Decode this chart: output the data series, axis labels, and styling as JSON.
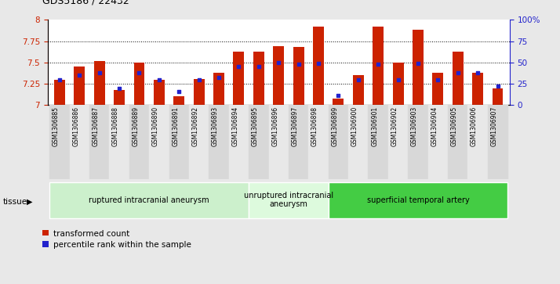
{
  "title": "GDS5186 / 22432",
  "samples": [
    "GSM1306885",
    "GSM1306886",
    "GSM1306887",
    "GSM1306888",
    "GSM1306889",
    "GSM1306890",
    "GSM1306891",
    "GSM1306892",
    "GSM1306893",
    "GSM1306894",
    "GSM1306895",
    "GSM1306896",
    "GSM1306897",
    "GSM1306898",
    "GSM1306899",
    "GSM1306900",
    "GSM1306901",
    "GSM1306902",
    "GSM1306903",
    "GSM1306904",
    "GSM1306905",
    "GSM1306906",
    "GSM1306907"
  ],
  "transformed_count": [
    7.3,
    7.45,
    7.52,
    7.18,
    7.5,
    7.3,
    7.1,
    7.31,
    7.38,
    7.63,
    7.63,
    7.69,
    7.68,
    7.92,
    7.08,
    7.35,
    7.92,
    7.5,
    7.88,
    7.38,
    7.63,
    7.38,
    7.2
  ],
  "percentile_rank": [
    30,
    35,
    38,
    20,
    38,
    30,
    16,
    30,
    32,
    45,
    45,
    50,
    48,
    49,
    11,
    30,
    48,
    30,
    49,
    30,
    38,
    38,
    22
  ],
  "tissue_groups": [
    {
      "label": "ruptured intracranial aneurysm",
      "start": 0,
      "end": 10,
      "color": "#ccf0cc"
    },
    {
      "label": "unruptured intracranial\naneurysm",
      "start": 10,
      "end": 14,
      "color": "#ddfadd"
    },
    {
      "label": "superficial temporal artery",
      "start": 14,
      "end": 23,
      "color": "#44cc44"
    }
  ],
  "ylim_left": [
    7.0,
    8.0
  ],
  "ylim_right": [
    0,
    100
  ],
  "yticks_left": [
    7.0,
    7.25,
    7.5,
    7.75,
    8.0
  ],
  "yticks_right": [
    0,
    25,
    50,
    75,
    100
  ],
  "bar_color": "#cc2200",
  "dot_color": "#2222cc",
  "background_color": "#e8e8e8",
  "plot_bg": "#ffffff",
  "bar_width": 0.55,
  "legend_items": [
    {
      "label": "transformed count",
      "color": "#cc2200"
    },
    {
      "label": "percentile rank within the sample",
      "color": "#2222cc"
    }
  ]
}
